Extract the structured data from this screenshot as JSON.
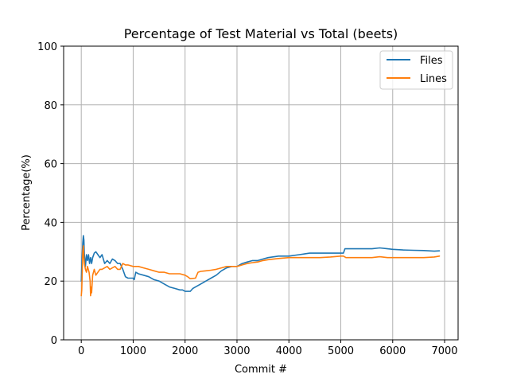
{
  "chart_data": {
    "type": "line",
    "title": "Percentage of Test Material vs Total (beets)",
    "xlabel": "Commit #",
    "ylabel": "Percentage(%)",
    "xlim": [
      -340,
      7260
    ],
    "ylim": [
      0,
      100
    ],
    "xticks": [
      0,
      1000,
      2000,
      3000,
      4000,
      5000,
      6000,
      7000
    ],
    "yticks": [
      0,
      20,
      40,
      60,
      80,
      100
    ],
    "grid": true,
    "legend_position": "top-right",
    "series": [
      {
        "name": "Files",
        "color": "#1f77b4",
        "points": [
          [
            0,
            20
          ],
          [
            15,
            28
          ],
          [
            30,
            33
          ],
          [
            40,
            35.5
          ],
          [
            50,
            34
          ],
          [
            60,
            29
          ],
          [
            70,
            27
          ],
          [
            80,
            25
          ],
          [
            100,
            29
          ],
          [
            120,
            27
          ],
          [
            140,
            29
          ],
          [
            160,
            26
          ],
          [
            180,
            28
          ],
          [
            200,
            26
          ],
          [
            220,
            28
          ],
          [
            250,
            29.5
          ],
          [
            280,
            30
          ],
          [
            320,
            29
          ],
          [
            360,
            28
          ],
          [
            400,
            29
          ],
          [
            450,
            26
          ],
          [
            500,
            27
          ],
          [
            550,
            26
          ],
          [
            600,
            27.5
          ],
          [
            650,
            27
          ],
          [
            700,
            26
          ],
          [
            750,
            26
          ],
          [
            800,
            24
          ],
          [
            850,
            21.5
          ],
          [
            900,
            21
          ],
          [
            950,
            21
          ],
          [
            1000,
            21
          ],
          [
            1020,
            20.5
          ],
          [
            1050,
            23
          ],
          [
            1100,
            22.5
          ],
          [
            1200,
            22
          ],
          [
            1300,
            21.5
          ],
          [
            1400,
            20.5
          ],
          [
            1500,
            20
          ],
          [
            1600,
            19
          ],
          [
            1700,
            18
          ],
          [
            1800,
            17.5
          ],
          [
            1900,
            17
          ],
          [
            1950,
            17
          ],
          [
            2000,
            16.5
          ],
          [
            2100,
            16.5
          ],
          [
            2150,
            17.5
          ],
          [
            2200,
            18
          ],
          [
            2300,
            19
          ],
          [
            2400,
            20
          ],
          [
            2500,
            21
          ],
          [
            2600,
            22
          ],
          [
            2700,
            23.5
          ],
          [
            2800,
            24.5
          ],
          [
            2900,
            25
          ],
          [
            3000,
            25
          ],
          [
            3100,
            26
          ],
          [
            3200,
            26.5
          ],
          [
            3300,
            27
          ],
          [
            3400,
            27
          ],
          [
            3500,
            27.5
          ],
          [
            3600,
            28
          ],
          [
            3800,
            28.5
          ],
          [
            4000,
            28.5
          ],
          [
            4200,
            29
          ],
          [
            4400,
            29.5
          ],
          [
            4600,
            29.5
          ],
          [
            4800,
            29.5
          ],
          [
            5000,
            29.5
          ],
          [
            5050,
            29.5
          ],
          [
            5080,
            31
          ],
          [
            5200,
            31
          ],
          [
            5400,
            31
          ],
          [
            5600,
            31
          ],
          [
            5750,
            31.3
          ],
          [
            5900,
            31
          ],
          [
            6000,
            30.8
          ],
          [
            6200,
            30.6
          ],
          [
            6400,
            30.5
          ],
          [
            6600,
            30.4
          ],
          [
            6800,
            30.2
          ],
          [
            6900,
            30.3
          ]
        ]
      },
      {
        "name": "Lines",
        "color": "#ff7f0e",
        "points": [
          [
            0,
            15
          ],
          [
            10,
            17
          ],
          [
            20,
            24
          ],
          [
            30,
            30
          ],
          [
            40,
            32
          ],
          [
            50,
            28
          ],
          [
            60,
            26
          ],
          [
            80,
            24
          ],
          [
            100,
            23
          ],
          [
            120,
            25
          ],
          [
            150,
            23
          ],
          [
            170,
            20
          ],
          [
            180,
            15
          ],
          [
            190,
            18
          ],
          [
            200,
            16
          ],
          [
            220,
            22
          ],
          [
            250,
            24
          ],
          [
            280,
            22
          ],
          [
            320,
            23
          ],
          [
            360,
            24
          ],
          [
            400,
            24
          ],
          [
            450,
            24.5
          ],
          [
            500,
            25
          ],
          [
            550,
            24
          ],
          [
            600,
            24.5
          ],
          [
            650,
            25
          ],
          [
            700,
            24
          ],
          [
            750,
            24
          ],
          [
            800,
            26
          ],
          [
            850,
            25.5
          ],
          [
            900,
            25.5
          ],
          [
            1000,
            25
          ],
          [
            1100,
            25
          ],
          [
            1200,
            24.5
          ],
          [
            1300,
            24
          ],
          [
            1400,
            23.5
          ],
          [
            1500,
            23
          ],
          [
            1600,
            23
          ],
          [
            1700,
            22.5
          ],
          [
            1800,
            22.5
          ],
          [
            1900,
            22.5
          ],
          [
            2000,
            22
          ],
          [
            2050,
            21.5
          ],
          [
            2100,
            20.8
          ],
          [
            2200,
            21
          ],
          [
            2250,
            23
          ],
          [
            2300,
            23.3
          ],
          [
            2400,
            23.5
          ],
          [
            2500,
            23.7
          ],
          [
            2600,
            24
          ],
          [
            2700,
            24.5
          ],
          [
            2800,
            25
          ],
          [
            2900,
            25
          ],
          [
            3000,
            25
          ],
          [
            3100,
            25.5
          ],
          [
            3200,
            26
          ],
          [
            3300,
            26.3
          ],
          [
            3400,
            26.5
          ],
          [
            3500,
            27
          ],
          [
            3600,
            27.3
          ],
          [
            3800,
            27.7
          ],
          [
            4000,
            28
          ],
          [
            4200,
            28
          ],
          [
            4400,
            28
          ],
          [
            4600,
            28
          ],
          [
            4800,
            28.2
          ],
          [
            5000,
            28.5
          ],
          [
            5050,
            28.5
          ],
          [
            5100,
            28
          ],
          [
            5200,
            28
          ],
          [
            5400,
            28
          ],
          [
            5600,
            28
          ],
          [
            5750,
            28.3
          ],
          [
            5900,
            28
          ],
          [
            6000,
            28
          ],
          [
            6200,
            28
          ],
          [
            6400,
            28
          ],
          [
            6600,
            28
          ],
          [
            6800,
            28.2
          ],
          [
            6900,
            28.5
          ]
        ]
      }
    ]
  }
}
